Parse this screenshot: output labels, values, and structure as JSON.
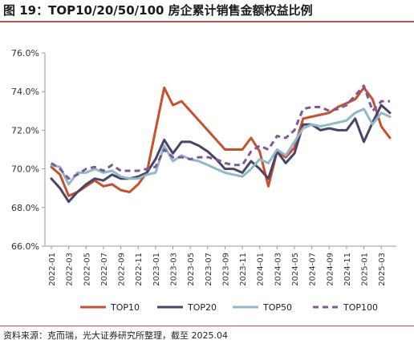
{
  "header": {
    "title": "图 19：TOP10/20/50/100 房企累计销售金额权益比例"
  },
  "footer": {
    "source": "资料来源：克而瑞，光大证券研究所整理，截至 2025.04"
  },
  "chart_data": {
    "type": "line",
    "title": "",
    "xlabel": "",
    "ylabel": "",
    "ylim": [
      66.0,
      76.0
    ],
    "yticks": [
      "66.0%",
      "68.0%",
      "70.0%",
      "72.0%",
      "74.0%",
      "76.0%"
    ],
    "grid": false,
    "legend": "bottom",
    "x": [
      "2022-01",
      "2022-02",
      "2022-03",
      "2022-04",
      "2022-05",
      "2022-06",
      "2022-07",
      "2022-08",
      "2022-09",
      "2022-10",
      "2022-11",
      "2022-12",
      "2023-01",
      "2023-02",
      "2023-03",
      "2023-04",
      "2023-05",
      "2023-06",
      "2023-07",
      "2023-08",
      "2023-09",
      "2023-10",
      "2023-11",
      "2023-12",
      "2024-01",
      "2024-02",
      "2024-03",
      "2024-04",
      "2024-05",
      "2024-06",
      "2024-07",
      "2024-08",
      "2024-09",
      "2024-10",
      "2024-11",
      "2024-12",
      "2025-01",
      "2025-02",
      "2025-03",
      "2025-04"
    ],
    "xtick_labels": [
      "2022-01",
      "2022-03",
      "2022-05",
      "2022-07",
      "2022-09",
      "2022-11",
      "2023-01",
      "2023-03",
      "2023-05",
      "2023-07",
      "2023-09",
      "2023-11",
      "2024-01",
      "2024-03",
      "2024-05",
      "2024-07",
      "2024-09",
      "2024-11",
      "2025-01",
      "2025-03"
    ],
    "series": [
      {
        "name": "TOP10",
        "color": "#c8502d",
        "dash": "solid",
        "values": [
          70.1,
          69.7,
          68.6,
          68.8,
          69.1,
          69.4,
          69.1,
          69.2,
          68.9,
          68.8,
          69.2,
          69.8,
          72.0,
          74.2,
          73.3,
          73.5,
          73.0,
          72.5,
          72.0,
          71.5,
          71.0,
          71.0,
          71.0,
          71.6,
          70.9,
          69.1,
          70.9,
          70.6,
          71.1,
          72.6,
          72.7,
          72.8,
          72.9,
          73.2,
          73.4,
          73.6,
          74.2,
          73.6,
          72.2,
          71.6
        ]
      },
      {
        "name": "TOP20",
        "color": "#4b4469",
        "dash": "solid",
        "values": [
          69.5,
          69.0,
          68.3,
          68.8,
          69.2,
          69.5,
          69.4,
          69.7,
          69.5,
          69.5,
          69.6,
          69.8,
          70.5,
          71.5,
          70.8,
          71.4,
          71.4,
          71.2,
          70.9,
          70.5,
          70.0,
          70.0,
          69.8,
          70.4,
          70.0,
          69.5,
          70.9,
          70.3,
          70.8,
          72.3,
          72.3,
          72.0,
          72.1,
          72.0,
          72.0,
          72.6,
          71.4,
          72.4,
          73.3,
          72.9
        ]
      },
      {
        "name": "TOP50",
        "color": "#8fb8c9",
        "dash": "solid",
        "values": [
          70.2,
          70.1,
          69.2,
          69.8,
          69.8,
          70.0,
          69.8,
          69.9,
          69.6,
          69.5,
          69.5,
          69.7,
          69.8,
          71.2,
          70.4,
          70.7,
          70.5,
          70.4,
          70.2,
          70.0,
          69.8,
          69.7,
          69.6,
          70.0,
          70.5,
          70.3,
          71.0,
          70.7,
          71.4,
          72.1,
          72.3,
          72.2,
          72.3,
          72.4,
          72.5,
          72.9,
          73.1,
          72.3,
          72.9,
          72.7
        ]
      },
      {
        "name": "TOP100",
        "color": "#7a5a9c",
        "dash": "dash",
        "values": [
          70.3,
          70.0,
          69.5,
          69.7,
          70.0,
          70.1,
          69.9,
          70.2,
          69.9,
          69.9,
          69.9,
          70.0,
          70.1,
          71.0,
          70.6,
          70.6,
          70.5,
          70.6,
          70.6,
          70.5,
          70.3,
          70.2,
          70.2,
          70.9,
          71.2,
          71.0,
          71.7,
          71.6,
          72.0,
          73.1,
          73.2,
          73.2,
          73.0,
          73.1,
          73.3,
          73.8,
          74.3,
          73.0,
          73.5,
          73.5
        ]
      }
    ]
  }
}
